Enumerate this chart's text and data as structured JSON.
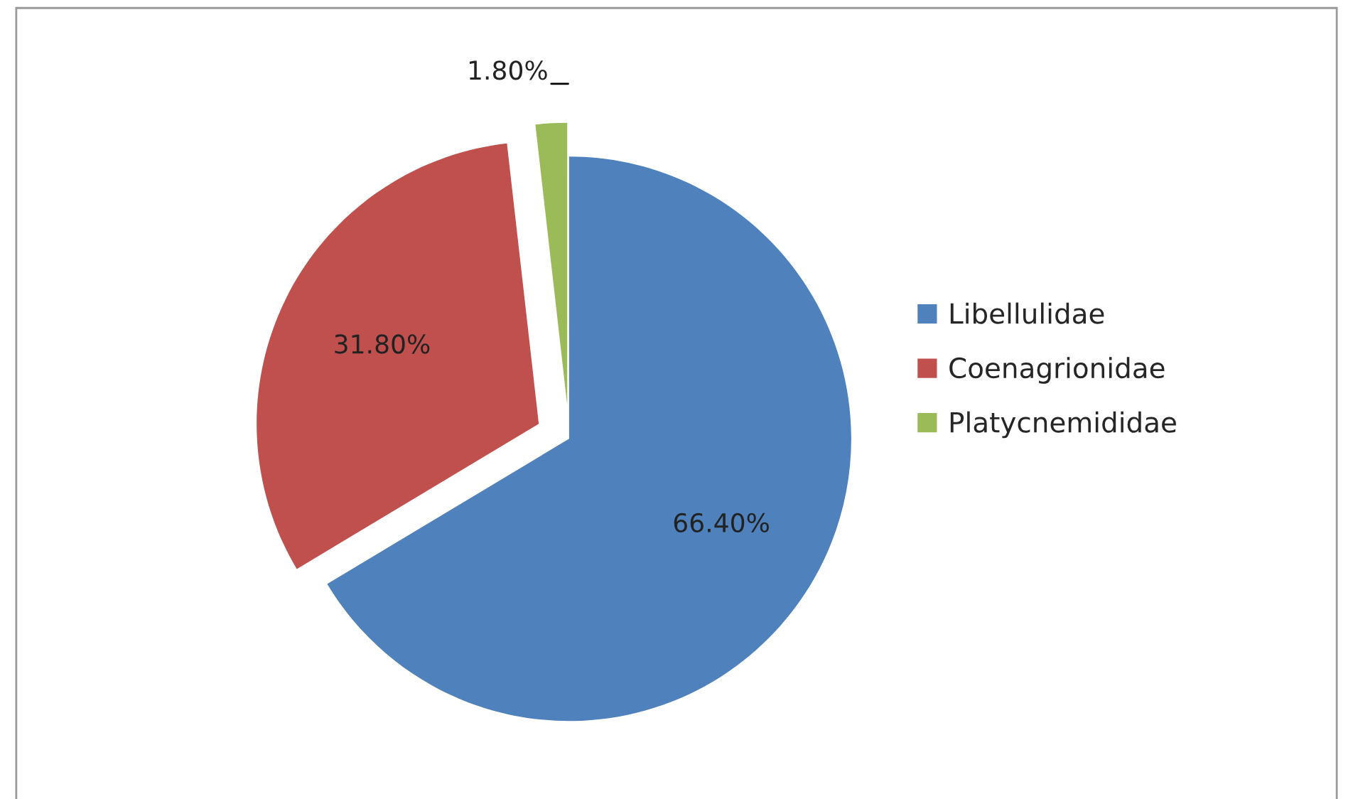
{
  "chart_data": {
    "type": "pie",
    "categories": [
      "Libellulidae",
      "Coenagrionidae",
      "Platycnemididae"
    ],
    "values": [
      66.4,
      31.8,
      1.8
    ],
    "colors": [
      "#4f81bd",
      "#c0504d",
      "#9bbb59"
    ],
    "value_labels": [
      "66.40%",
      "31.80%",
      "1.80%"
    ],
    "legend": "right"
  }
}
